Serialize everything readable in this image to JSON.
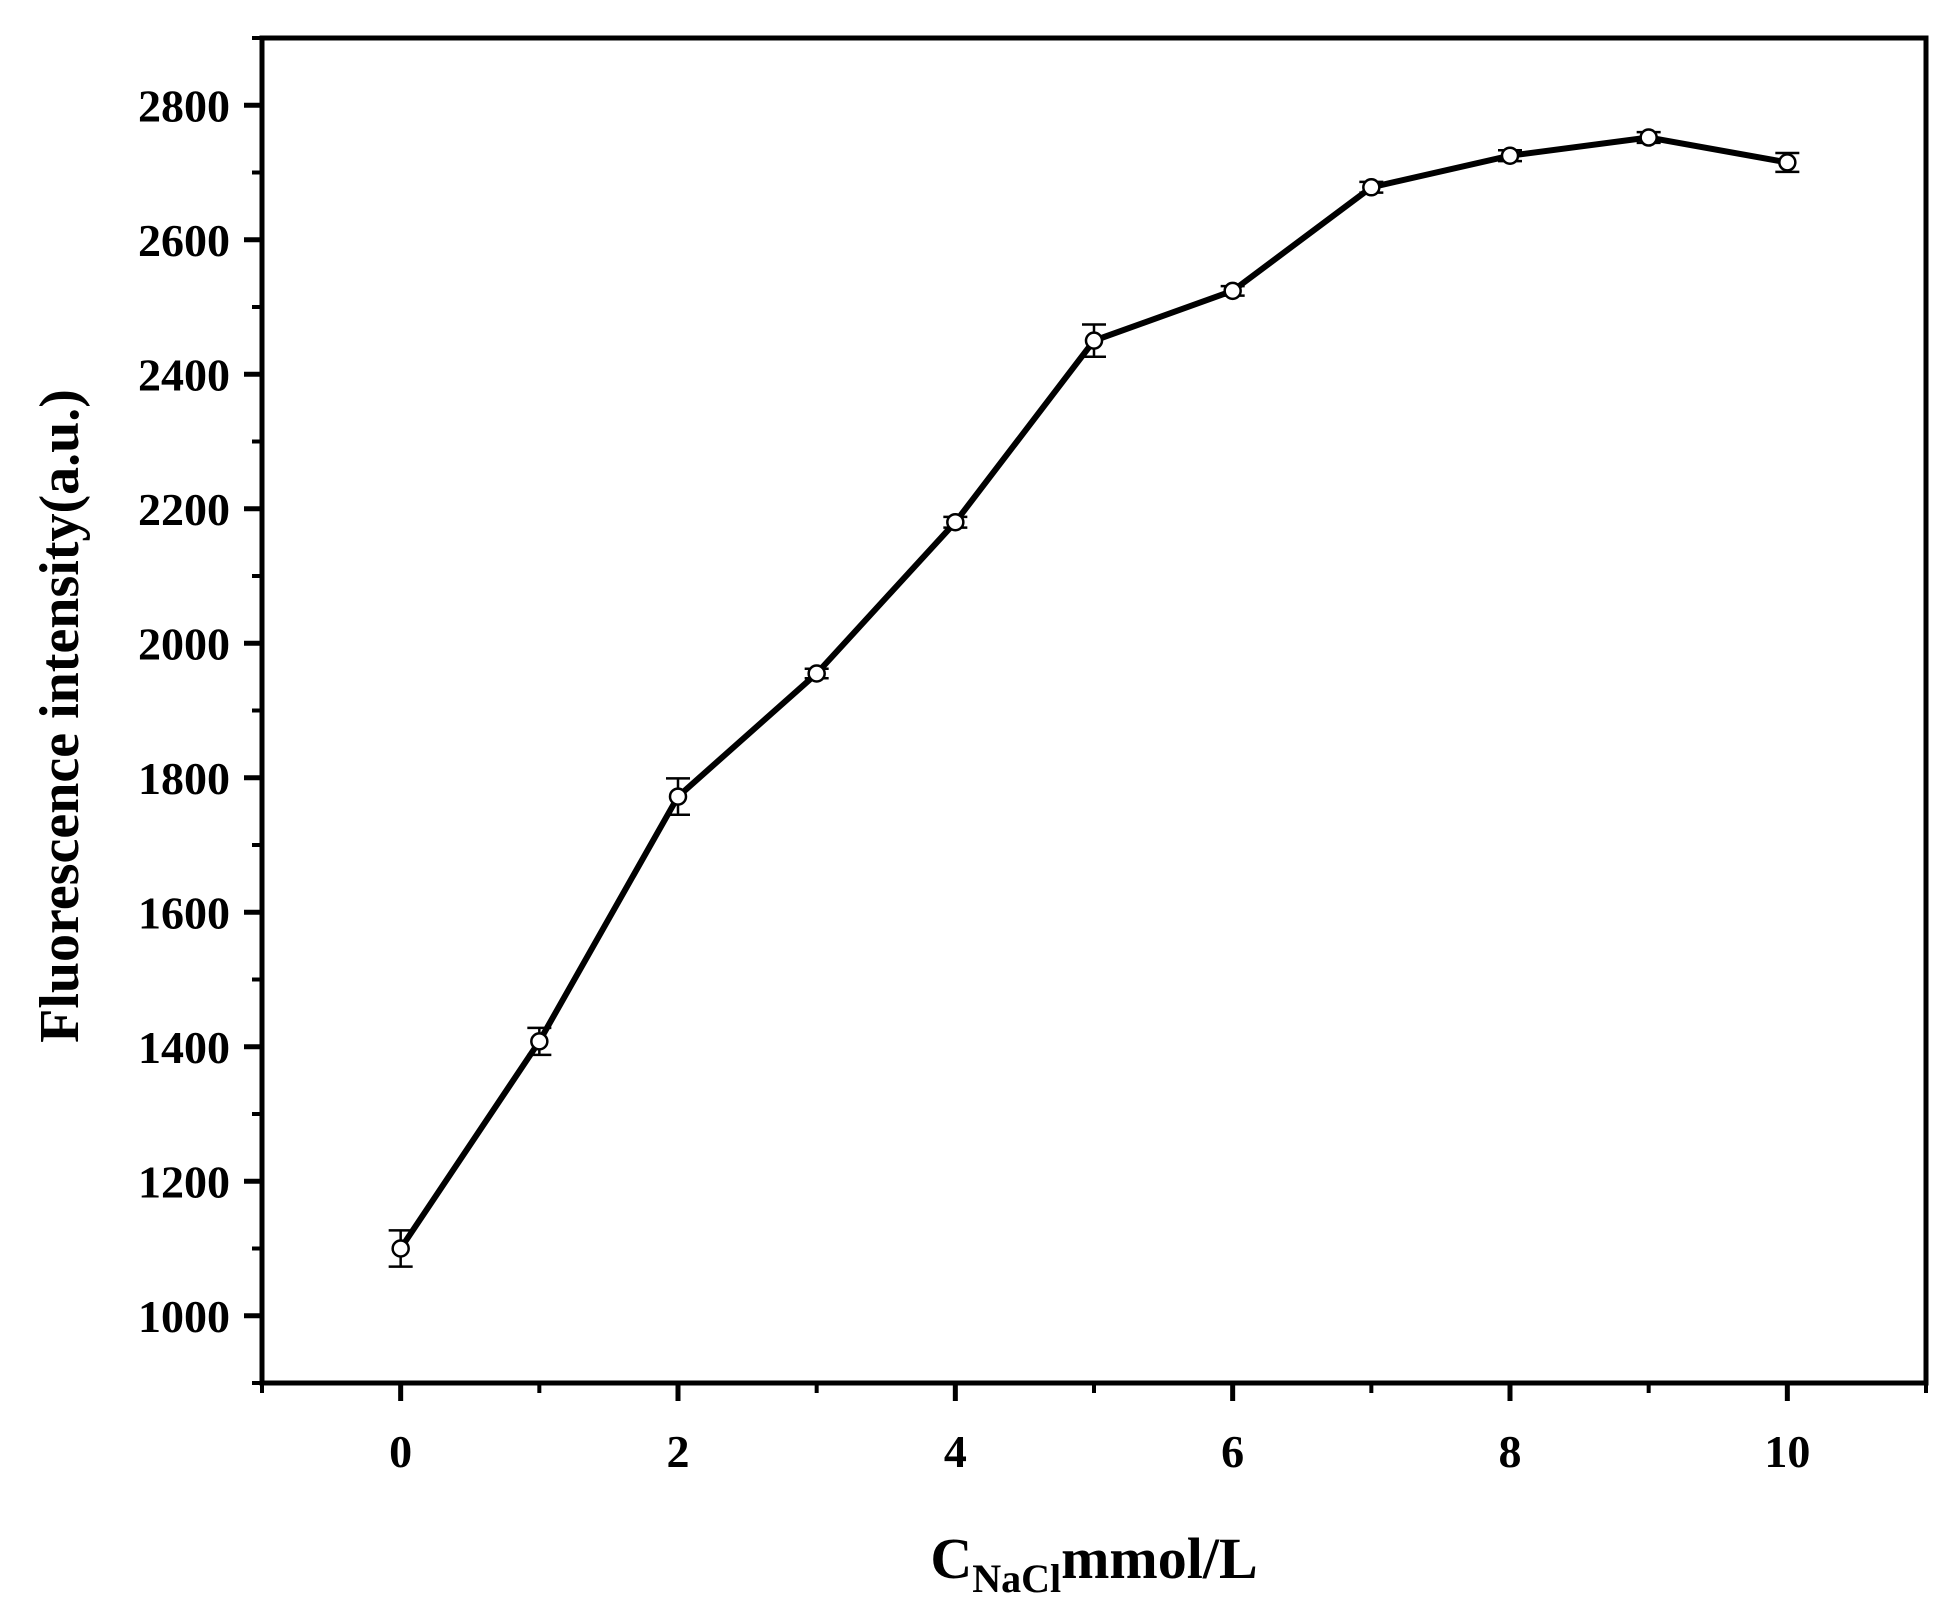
{
  "chart_data": {
    "type": "line",
    "xlabel": {
      "main": "C",
      "subscript": "NaCl",
      "suffix": "mmol/L"
    },
    "ylabel": "Fluorescence intensity(a.u.)",
    "xlim": [
      -1,
      11
    ],
    "ylim": [
      900,
      2900
    ],
    "x_ticks": [
      0,
      2,
      4,
      6,
      8,
      10
    ],
    "x_tick_labels": [
      "0",
      "2",
      "4",
      "6",
      "8",
      "10"
    ],
    "y_ticks": [
      1000,
      1200,
      1400,
      1600,
      1800,
      2000,
      2200,
      2400,
      2600,
      2800
    ],
    "y_tick_labels": [
      "1000",
      "1200",
      "1400",
      "1600",
      "1800",
      "2000",
      "2200",
      "2400",
      "2600",
      "2800"
    ],
    "grid": false,
    "legend": "none",
    "marker": "open-circle",
    "line_color": "#000000",
    "series": [
      {
        "x": [
          0,
          1,
          2,
          3,
          4,
          5,
          6,
          7,
          8,
          9,
          10
        ],
        "y": [
          1100,
          1408,
          1772,
          1955,
          2180,
          2450,
          2524,
          2678,
          2725,
          2752,
          2715
        ],
        "error": [
          27,
          20,
          27,
          7,
          8,
          24,
          7,
          8,
          8,
          8,
          14
        ]
      }
    ]
  }
}
